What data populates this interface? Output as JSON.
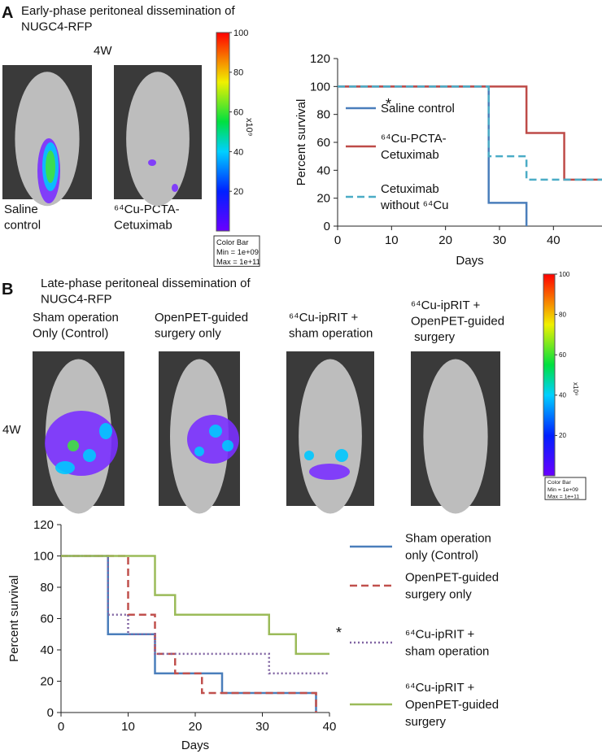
{
  "figure": {
    "panel_a": {
      "label": "A",
      "title": "Early-phase peritoneal dissemination of\nNUGC4-RFP",
      "time": "4W",
      "captions": [
        "Saline\ncontrol",
        "⁶⁴Cu-PCTA-\nCetuximab"
      ],
      "colorbar": {
        "lim": [
          0,
          100
        ],
        "ticks": [
          100,
          80,
          60,
          40,
          20
        ],
        "unit": "x10⁹",
        "box": [
          "Color Bar",
          "Min = 1e+09",
          "Max = 1e+11"
        ]
      }
    },
    "panel_b": {
      "label": "B",
      "title": "Late-phase peritoneal dissemination of\nNUGC4-RFP",
      "time": "4W",
      "captions": [
        "Sham operation\nOnly (Control)",
        "OpenPET-guided\nsurgery only",
        "⁶⁴Cu-ipRIT +\nsham operation",
        "⁶⁴Cu-ipRIT +\nOpenPET-guided\n surgery"
      ],
      "colorbar": {
        "lim": [
          0,
          100
        ],
        "ticks": [
          100,
          80,
          60,
          40,
          20
        ],
        "unit": "x10⁹",
        "box": [
          "Color Bar",
          "Min = 1e+09",
          "Max = 1e+11"
        ]
      }
    }
  },
  "chart_data": [
    {
      "type": "step",
      "x_label": "Days",
      "y_label": "Percent survival",
      "xlim": [
        0,
        49
      ],
      "xticks": [
        0,
        10,
        20,
        30,
        40
      ],
      "ylim": [
        0,
        120
      ],
      "yticks": [
        0,
        20,
        40,
        60,
        80,
        100,
        120
      ],
      "series": [
        {
          "name": "Saline control",
          "color": "#4a7ebb",
          "dash": "solid",
          "x": [
            0,
            28,
            35
          ],
          "values": [
            100,
            16.7,
            0
          ]
        },
        {
          "name": "⁶⁴Cu-PCTA-\nCetuximab",
          "color": "#be4b48",
          "dash": "solid",
          "x": [
            0,
            35,
            42,
            49
          ],
          "values": [
            100,
            66.7,
            33.3,
            33.3
          ]
        },
        {
          "name": "Cetuximab\nwithout ⁶⁴Cu",
          "color": "#4bacc6",
          "dash": "dashed",
          "x": [
            0,
            28,
            35,
            49
          ],
          "values": [
            100,
            50,
            33.3,
            33.3
          ]
        }
      ],
      "annotation": "*"
    },
    {
      "type": "step",
      "x_label": "Days",
      "y_label": "Percent survival",
      "xlim": [
        0,
        40
      ],
      "xticks": [
        0,
        10,
        20,
        30,
        40
      ],
      "ylim": [
        0,
        120
      ],
      "yticks": [
        0,
        20,
        40,
        60,
        80,
        100,
        120
      ],
      "series": [
        {
          "name": "Sham operation\nonly (Control)",
          "color": "#4a7ebb",
          "dash": "solid",
          "x": [
            0,
            7,
            14,
            24,
            38
          ],
          "values": [
            100,
            50,
            25,
            12.5,
            0
          ]
        },
        {
          "name": "OpenPET-guided\nsurgery only",
          "color": "#c0504d",
          "dash": "dashed",
          "x": [
            0,
            10,
            14,
            17,
            21,
            38
          ],
          "values": [
            100,
            62.5,
            37.5,
            25,
            12.5,
            0
          ]
        },
        {
          "name": "⁶⁴Cu-ipRIT +\nsham operation",
          "color": "#8064a2",
          "dash": "dotted",
          "x": [
            0,
            7,
            10,
            14,
            31,
            40
          ],
          "values": [
            100,
            62.5,
            50,
            37.5,
            25,
            25
          ]
        },
        {
          "name": "⁶⁴Cu-ipRIT +\nOpenPET-guided\nsurgery",
          "color": "#9bbb59",
          "dash": "solid",
          "x": [
            0,
            14,
            17,
            31,
            35,
            40
          ],
          "values": [
            100,
            75,
            62.5,
            50,
            37.5,
            37.5
          ]
        }
      ],
      "annotation": "*"
    }
  ]
}
